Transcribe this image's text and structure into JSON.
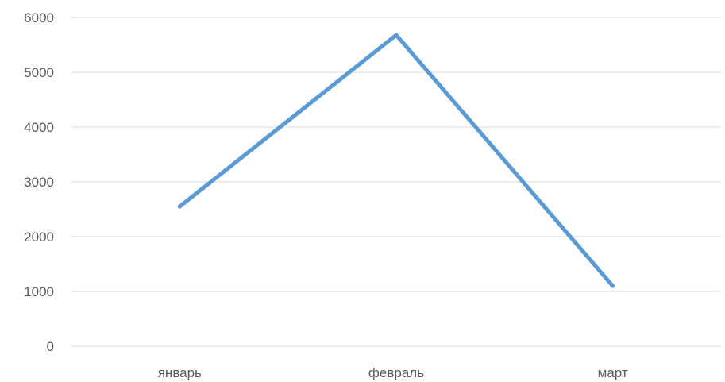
{
  "chart_data": {
    "type": "line",
    "title": "",
    "xlabel": "",
    "ylabel": "",
    "categories": [
      "январь",
      "февраль",
      "март"
    ],
    "series": [
      {
        "values": [
          2550,
          5680,
          1100
        ]
      }
    ],
    "ylim": [
      0,
      6000
    ],
    "yticks": [
      "0",
      "1000",
      "2000",
      "3000",
      "4000",
      "5000",
      "6000"
    ],
    "ytick_values": [
      0,
      1000,
      2000,
      3000,
      4000,
      5000,
      6000
    ],
    "grid": true,
    "legend": "none",
    "colors": {
      "series": "#5b9bd5",
      "grid": "#d9d9d9",
      "text": "#595959"
    }
  }
}
